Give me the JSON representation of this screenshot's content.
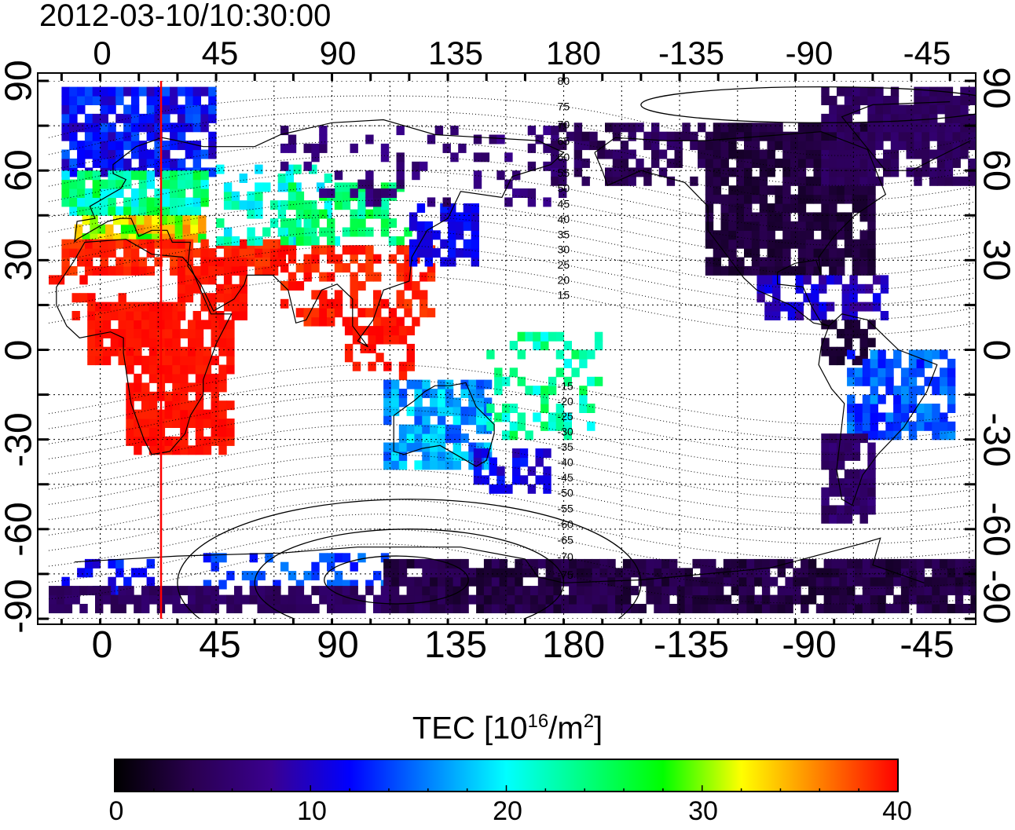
{
  "title": "2012-03-10/10:30:00",
  "map": {
    "lon_ticks_top": [
      "0",
      "45",
      "90",
      "135",
      "180",
      "-135",
      "-90",
      "-45"
    ],
    "lon_ticks_bottom": [
      "0",
      "45",
      "90",
      "135",
      "180",
      "-135",
      "-90",
      "-45"
    ],
    "lat_ticks_left": [
      "90",
      "60",
      "30",
      "0",
      "-30",
      "-60",
      "-90"
    ],
    "lat_ticks_right": [
      "90",
      "60",
      "30",
      "0",
      "-30",
      "-60",
      "-90"
    ],
    "lon_range": [
      -20,
      340
    ],
    "lat_range": [
      -90,
      90
    ],
    "grid": true,
    "terminator_longitude": 22.5,
    "terminator_color": "#ff0000",
    "contour_labels": [
      "80",
      "75",
      "70",
      "65",
      "60",
      "55",
      "50",
      "45",
      "40",
      "35",
      "30",
      "25",
      "20",
      "15",
      "-15",
      "-20",
      "-25",
      "-30",
      "-35",
      "-40",
      "-45",
      "-50",
      "-55",
      "-60",
      "-65",
      "-70",
      "-75"
    ]
  },
  "colorbar": {
    "title": "TEC  [10",
    "title_sup1": "16",
    "title_mid": "/m",
    "title_sup2": "2",
    "title_end": "]",
    "ticks": [
      "0",
      "10",
      "20",
      "30",
      "40"
    ],
    "range": [
      0,
      40
    ],
    "colormap": [
      "#000000",
      "#2a0050",
      "#3a0090",
      "#0000ff",
      "#0080ff",
      "#00ffff",
      "#00ff80",
      "#00ff00",
      "#ffff00",
      "#ff8000",
      "#ff0000"
    ]
  }
}
